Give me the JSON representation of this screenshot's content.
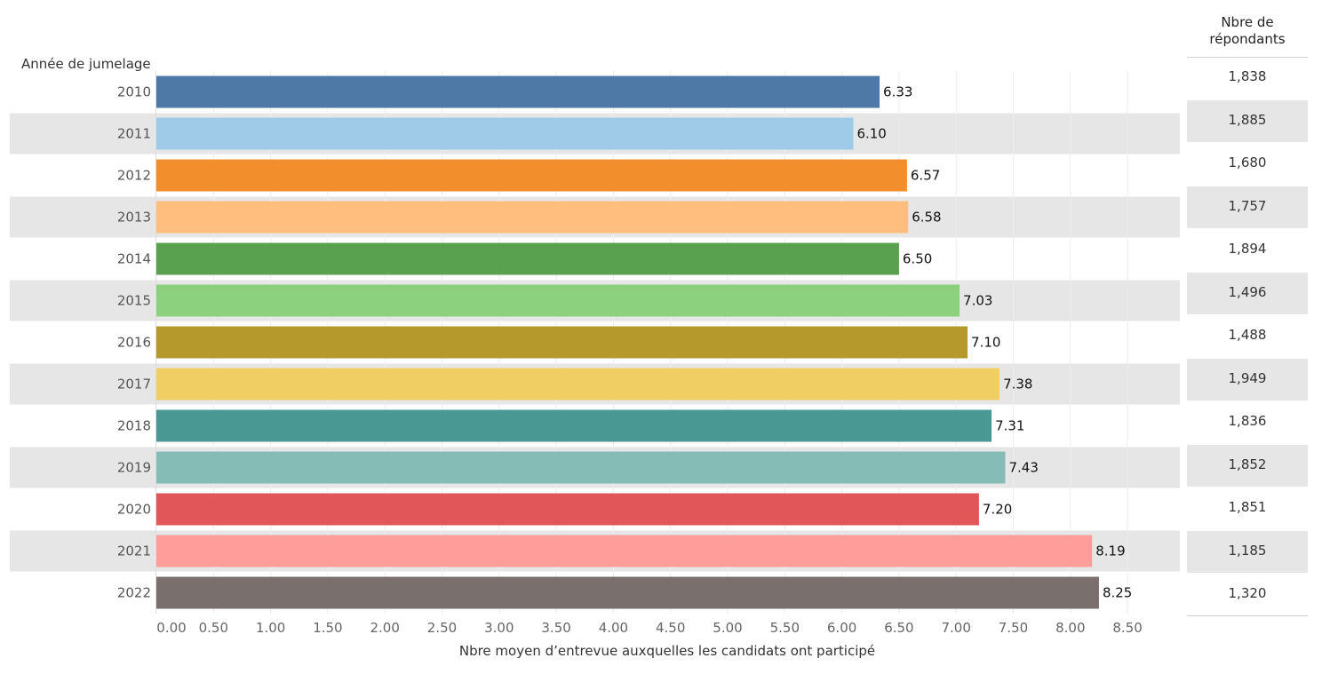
{
  "chart_data": {
    "type": "bar",
    "orientation": "horizontal",
    "y_axis_title": "Année de jumelage",
    "xlabel": "Nbre moyen d’entrevue auxquelles les candidats ont participé",
    "xlim": [
      0,
      9.0
    ],
    "x_ticks": [
      "0.00",
      "0.50",
      "1.00",
      "1.50",
      "2.00",
      "2.50",
      "3.00",
      "3.50",
      "4.00",
      "4.50",
      "5.00",
      "5.50",
      "6.00",
      "6.50",
      "7.00",
      "7.50",
      "8.00",
      "8.50"
    ],
    "grid": true,
    "alternating_row_shading": true,
    "categories": [
      "2010",
      "2011",
      "2012",
      "2013",
      "2014",
      "2015",
      "2016",
      "2017",
      "2018",
      "2019",
      "2020",
      "2021",
      "2022"
    ],
    "values": [
      6.33,
      6.1,
      6.57,
      6.58,
      6.5,
      7.03,
      7.1,
      7.38,
      7.31,
      7.43,
      7.2,
      8.19,
      8.25
    ],
    "value_labels": [
      "6.33",
      "6.10",
      "6.57",
      "6.58",
      "6.50",
      "7.03",
      "7.10",
      "7.38",
      "7.31",
      "7.43",
      "7.20",
      "8.19",
      "8.25"
    ],
    "colors": [
      "#4e79a7",
      "#a0cbe8",
      "#f28e2b",
      "#ffbe7d",
      "#59a14f",
      "#8cd17d",
      "#b6992d",
      "#f1ce63",
      "#499894",
      "#86bcb6",
      "#e15759",
      "#ff9d9a",
      "#79706e"
    ]
  },
  "respondents": {
    "header": [
      "Nbre de",
      "répondants"
    ],
    "values": [
      "1,838",
      "1,885",
      "1,680",
      "1,757",
      "1,894",
      "1,496",
      "1,488",
      "1,949",
      "1,836",
      "1,852",
      "1,851",
      "1,185",
      "1,320"
    ]
  }
}
